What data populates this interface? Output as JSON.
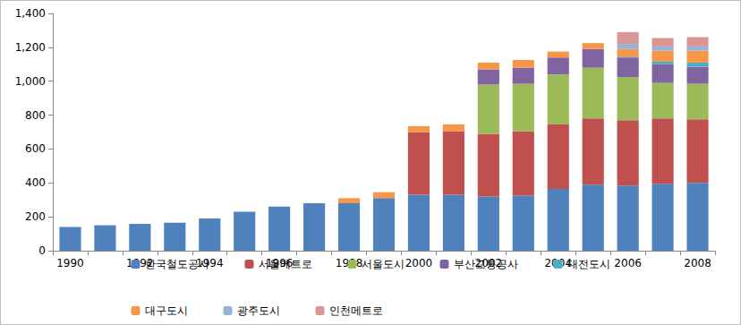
{
  "chart_data": {
    "type": "bar",
    "stacked": true,
    "grid": false,
    "legend": "bottom",
    "categories": [
      "1990",
      null,
      "1992",
      null,
      "1994",
      null,
      "1996",
      null,
      "1998",
      null,
      "2000",
      null,
      "2002",
      null,
      "2004",
      null,
      "2006",
      null,
      "2008"
    ],
    "ylim": [
      0,
      1400
    ],
    "yticks": [
      0,
      200,
      400,
      600,
      800,
      {
        "value": 1000,
        "label": "1,000"
      },
      {
        "value": 1200,
        "label": "1,200"
      },
      {
        "value": 1400,
        "label": "1,400"
      }
    ],
    "series": [
      {
        "name": "한국철도공사",
        "color": "#4f81bd",
        "values": [
          140,
          150,
          158,
          165,
          190,
          230,
          260,
          280,
          280,
          310,
          330,
          330,
          320,
          325,
          365,
          390,
          385,
          395,
          400
        ]
      },
      {
        "name": "서울메트로",
        "color": "#c0504d",
        "values": [
          0,
          0,
          0,
          0,
          0,
          0,
          0,
          0,
          0,
          0,
          370,
          375,
          370,
          380,
          380,
          390,
          385,
          385,
          375
        ]
      },
      {
        "name": "서울도시",
        "color": "#9bbb59",
        "values": [
          0,
          0,
          0,
          0,
          0,
          0,
          0,
          0,
          0,
          0,
          0,
          0,
          290,
          280,
          295,
          300,
          255,
          210,
          210
        ]
      },
      {
        "name": "부산교통공사",
        "color": "#8064a2",
        "values": [
          0,
          0,
          0,
          0,
          0,
          0,
          0,
          0,
          0,
          0,
          0,
          0,
          90,
          95,
          100,
          110,
          115,
          110,
          100
        ]
      },
      {
        "name": "대전도시",
        "color": "#4bacc6",
        "values": [
          0,
          0,
          0,
          0,
          0,
          0,
          0,
          0,
          0,
          0,
          0,
          0,
          0,
          0,
          0,
          0,
          5,
          15,
          25
        ]
      },
      {
        "name": "대구도시",
        "color": "#f79646",
        "values": [
          0,
          0,
          0,
          0,
          0,
          0,
          0,
          0,
          30,
          35,
          35,
          40,
          40,
          45,
          35,
          35,
          45,
          65,
          70
        ]
      },
      {
        "name": "광주도시",
        "color": "#95b3d7",
        "values": [
          0,
          0,
          0,
          0,
          0,
          0,
          0,
          0,
          0,
          0,
          0,
          0,
          0,
          0,
          0,
          0,
          30,
          25,
          25
        ]
      },
      {
        "name": "인천메트로",
        "color": "#d99694",
        "values": [
          0,
          0,
          0,
          0,
          0,
          0,
          0,
          0,
          0,
          0,
          0,
          0,
          0,
          0,
          0,
          0,
          70,
          50,
          55
        ]
      }
    ]
  }
}
